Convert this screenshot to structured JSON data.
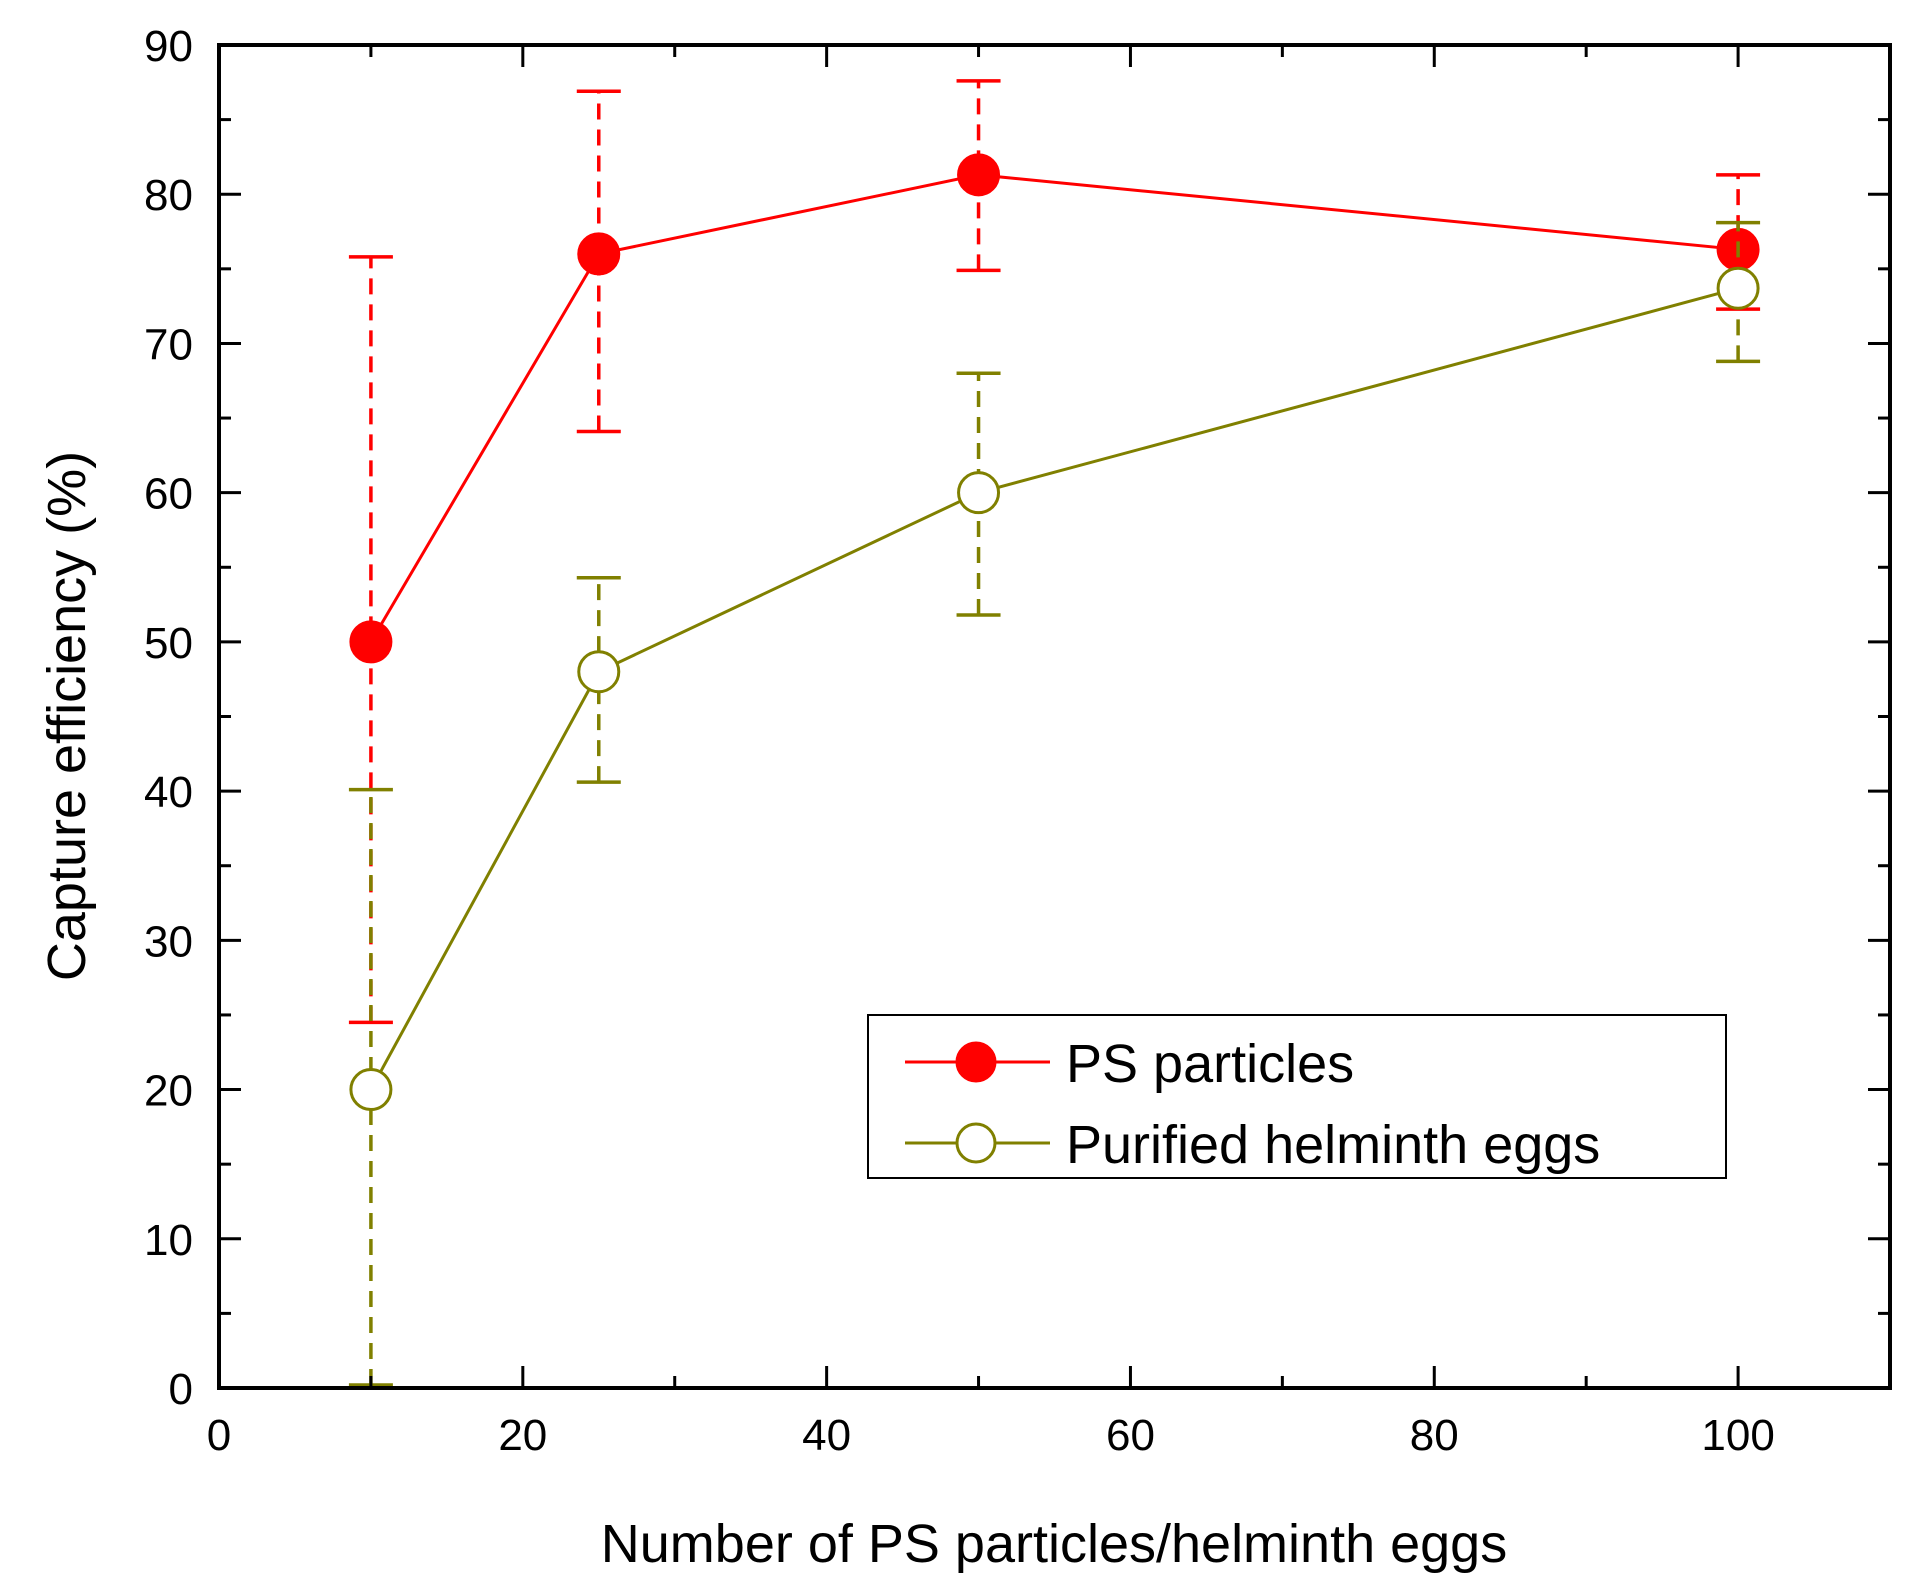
{
  "chart_data": {
    "type": "line",
    "xlabel": "Number of PS particles/helminth eggs",
    "ylabel": "Capture efficiency (%)",
    "xlim": [
      0,
      110
    ],
    "ylim": [
      0,
      90
    ],
    "xticks": [
      0,
      20,
      40,
      60,
      80,
      100
    ],
    "yticks": [
      0,
      10,
      20,
      30,
      40,
      50,
      60,
      70,
      80,
      90
    ],
    "legend_position": "bottom-right",
    "series": [
      {
        "name": "PS particles",
        "color": "#ff0000",
        "marker": "filled-circle",
        "x": [
          10,
          25,
          50,
          100
        ],
        "y": [
          50,
          76,
          81.3,
          76.3
        ],
        "err_low": [
          24.5,
          64.1,
          74.9,
          72.3
        ],
        "err_high": [
          75.8,
          86.9,
          87.6,
          81.3
        ]
      },
      {
        "name": "Purified helminth eggs",
        "color": "#808000",
        "marker": "open-circle",
        "x": [
          10,
          25,
          50,
          100
        ],
        "y": [
          20,
          48,
          60,
          73.7
        ],
        "err_low": [
          0.2,
          40.6,
          51.8,
          68.8
        ],
        "err_high": [
          40.1,
          54.3,
          68,
          78.1
        ]
      }
    ]
  }
}
